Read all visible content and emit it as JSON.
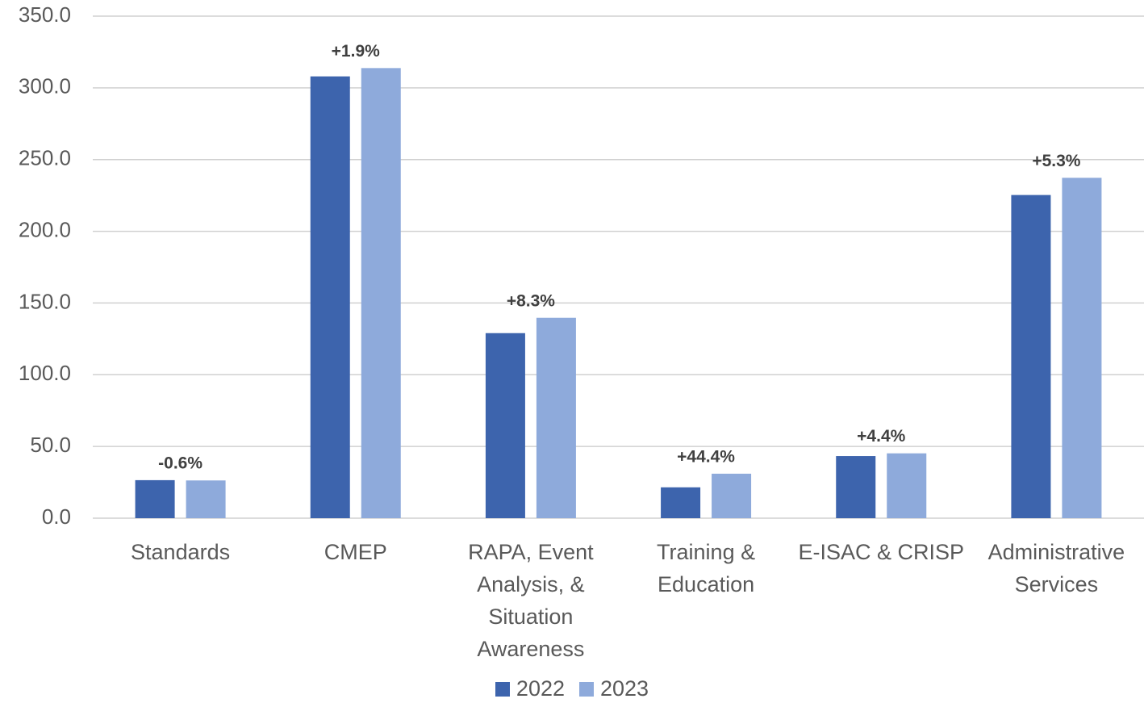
{
  "chart_data": {
    "type": "bar",
    "categories": [
      "Standards",
      "CMEP",
      "RAPA, Event Analysis, & Situation Awareness",
      "Training & Education",
      "E-ISAC & CRISP",
      "Administrative Services"
    ],
    "series": [
      {
        "name": "2022",
        "color": "#3d64ad",
        "values": [
          26.5,
          308.0,
          129.0,
          21.5,
          43.3,
          225.3
        ]
      },
      {
        "name": "2023",
        "color": "#8eaadb",
        "values": [
          26.3,
          313.8,
          139.7,
          31.0,
          45.2,
          237.3
        ]
      }
    ],
    "annotations": [
      "-0.6%",
      "+1.9%",
      "+8.3%",
      "+44.4%",
      "+4.4%",
      "+5.3%"
    ],
    "ylim": [
      0,
      350
    ],
    "yticks": [
      {
        "value": 0,
        "label": "0.0"
      },
      {
        "value": 50,
        "label": "50.0"
      },
      {
        "value": 100,
        "label": "100.0"
      },
      {
        "value": 150,
        "label": "150.0"
      },
      {
        "value": 200,
        "label": "200.0"
      },
      {
        "value": 250,
        "label": "250.0"
      },
      {
        "value": 300,
        "label": "300.0"
      },
      {
        "value": 350,
        "label": "350.0"
      }
    ],
    "grid": true,
    "legend": "bottom"
  }
}
